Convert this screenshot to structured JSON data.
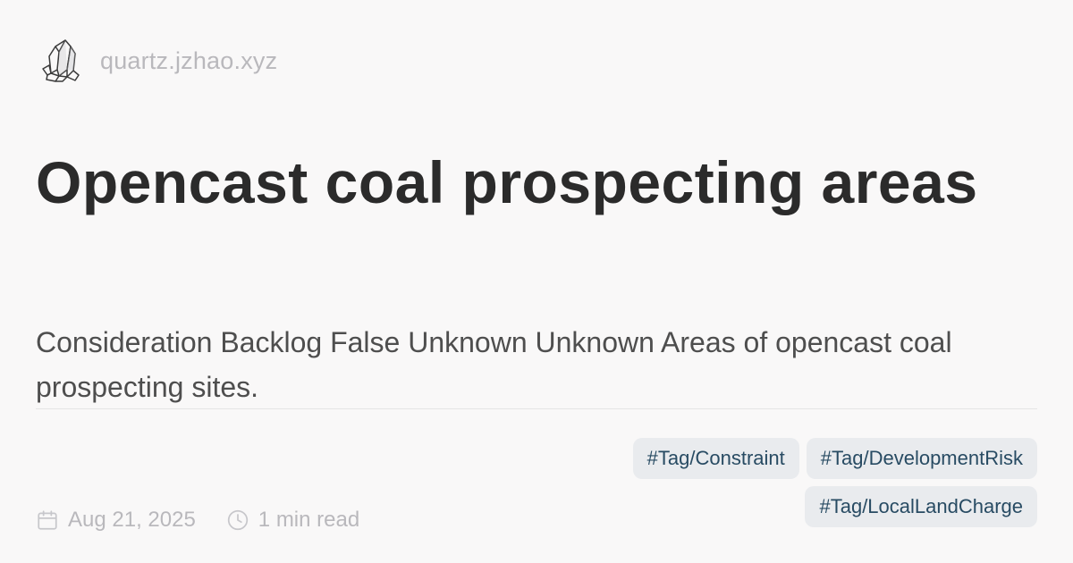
{
  "site": {
    "name": "quartz.jzhao.xyz",
    "logo_icon": "crystal-logo-icon"
  },
  "page": {
    "title": "Opencast coal prospecting areas",
    "description": "Consideration Backlog False Unknown Unknown Areas of opencast coal prospecting sites."
  },
  "meta": {
    "date": "Aug 21, 2025",
    "date_icon": "calendar-icon",
    "reading_time": "1 min read",
    "reading_time_icon": "clock-icon"
  },
  "tags": [
    "#Tag/Constraint",
    "#Tag/DevelopmentRisk",
    "#Tag/LocalLandCharge"
  ],
  "colors": {
    "background": "#f9f8f8",
    "title": "#2b2b2b",
    "description": "#4e4e4e",
    "muted": "#b9b8bc",
    "tag_background": "#e9ebee",
    "tag_text": "#284b63",
    "divider": "#e5e5e5"
  }
}
